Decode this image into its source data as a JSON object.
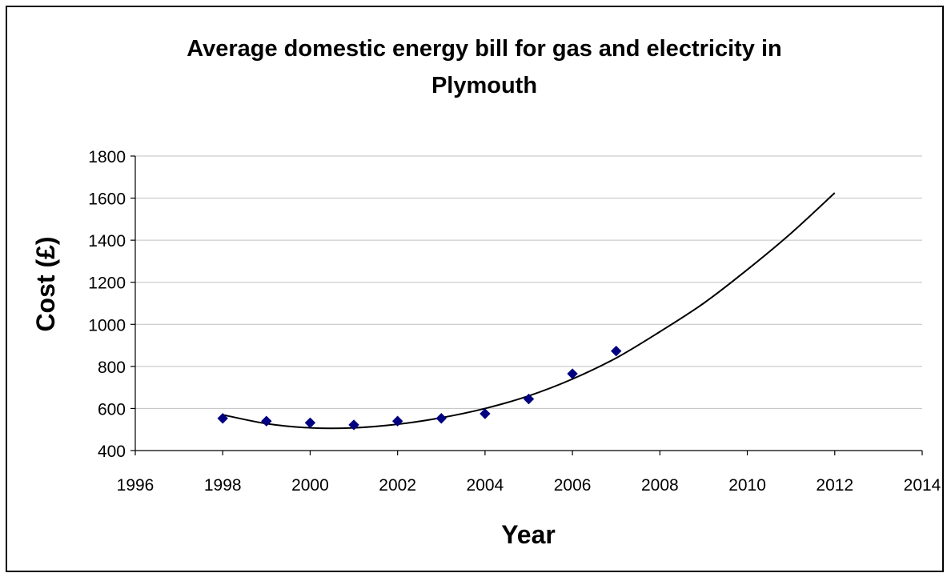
{
  "chart_data": {
    "type": "scatter",
    "title_lines": [
      "Average domestic energy bill for gas and electricity in",
      "Plymouth"
    ],
    "xlabel": "Year",
    "ylabel": "Cost (£)",
    "xlim": [
      1996,
      2014
    ],
    "ylim": [
      400,
      1800
    ],
    "xticks": [
      1996,
      1998,
      2000,
      2002,
      2004,
      2006,
      2008,
      2010,
      2012,
      2014
    ],
    "yticks": [
      400,
      600,
      800,
      1000,
      1200,
      1400,
      1600,
      1800
    ],
    "grid": "horizontal",
    "legend": "none",
    "series": [
      {
        "marker": "diamond",
        "color": "#000080",
        "x": [
          1998,
          1999,
          2000,
          2001,
          2002,
          2003,
          2004,
          2005,
          2006,
          2007
        ],
        "y": [
          553,
          540,
          532,
          522,
          540,
          553,
          575,
          645,
          765,
          873
        ]
      }
    ],
    "trendline": {
      "type": "polynomial",
      "color": "#000000",
      "x": [
        1998,
        1999,
        2000,
        2001,
        2002,
        2003,
        2004,
        2005,
        2006,
        2007,
        2008,
        2009,
        2010,
        2011,
        2012
      ],
      "y": [
        570,
        528,
        508,
        508,
        525,
        556,
        600,
        660,
        740,
        840,
        965,
        1100,
        1260,
        1433,
        1625
      ]
    }
  }
}
